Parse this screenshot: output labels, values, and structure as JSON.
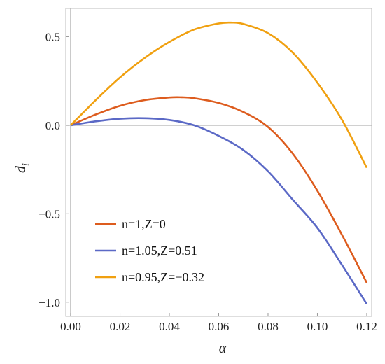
{
  "chart_data": {
    "type": "line",
    "xlabel": "α",
    "ylabel": "d",
    "ylabel_sub": "i",
    "xlim": [
      -0.002,
      0.122
    ],
    "ylim": [
      -1.08,
      0.66
    ],
    "xticks": [
      "0.00",
      "0.02",
      "0.04",
      "0.06",
      "0.08",
      "0.10",
      "0.12"
    ],
    "yticks": [
      "−1.0",
      "−0.5",
      "0.0",
      "0.5"
    ],
    "grid": false,
    "frame": true,
    "legend_position": "lower-left",
    "series": [
      {
        "name": "n=1,Z=0",
        "color": "#dd5c1e",
        "x": [
          0.0,
          0.01,
          0.02,
          0.03,
          0.04,
          0.045,
          0.05,
          0.06,
          0.07,
          0.08,
          0.09,
          0.1,
          0.11,
          0.12
        ],
        "y": [
          0.0,
          0.06,
          0.11,
          0.142,
          0.157,
          0.158,
          0.153,
          0.126,
          0.075,
          -0.01,
          -0.16,
          -0.37,
          -0.62,
          -0.89
        ]
      },
      {
        "name": "n=1.05,Z=0.51",
        "color": "#5b69c6",
        "x": [
          0.0,
          0.01,
          0.02,
          0.03,
          0.04,
          0.05,
          0.06,
          0.07,
          0.08,
          0.09,
          0.1,
          0.11,
          0.12
        ],
        "y": [
          0.0,
          0.022,
          0.037,
          0.04,
          0.03,
          0.0,
          -0.06,
          -0.14,
          -0.26,
          -0.42,
          -0.58,
          -0.79,
          -1.01
        ]
      },
      {
        "name": "n=0.95,Z=−0.32",
        "color": "#f0a010",
        "x": [
          0.0,
          0.01,
          0.02,
          0.03,
          0.04,
          0.05,
          0.06,
          0.065,
          0.07,
          0.08,
          0.09,
          0.1,
          0.11,
          0.12
        ],
        "y": [
          0.0,
          0.14,
          0.27,
          0.38,
          0.47,
          0.54,
          0.575,
          0.58,
          0.572,
          0.52,
          0.41,
          0.24,
          0.03,
          -0.24
        ]
      }
    ]
  }
}
